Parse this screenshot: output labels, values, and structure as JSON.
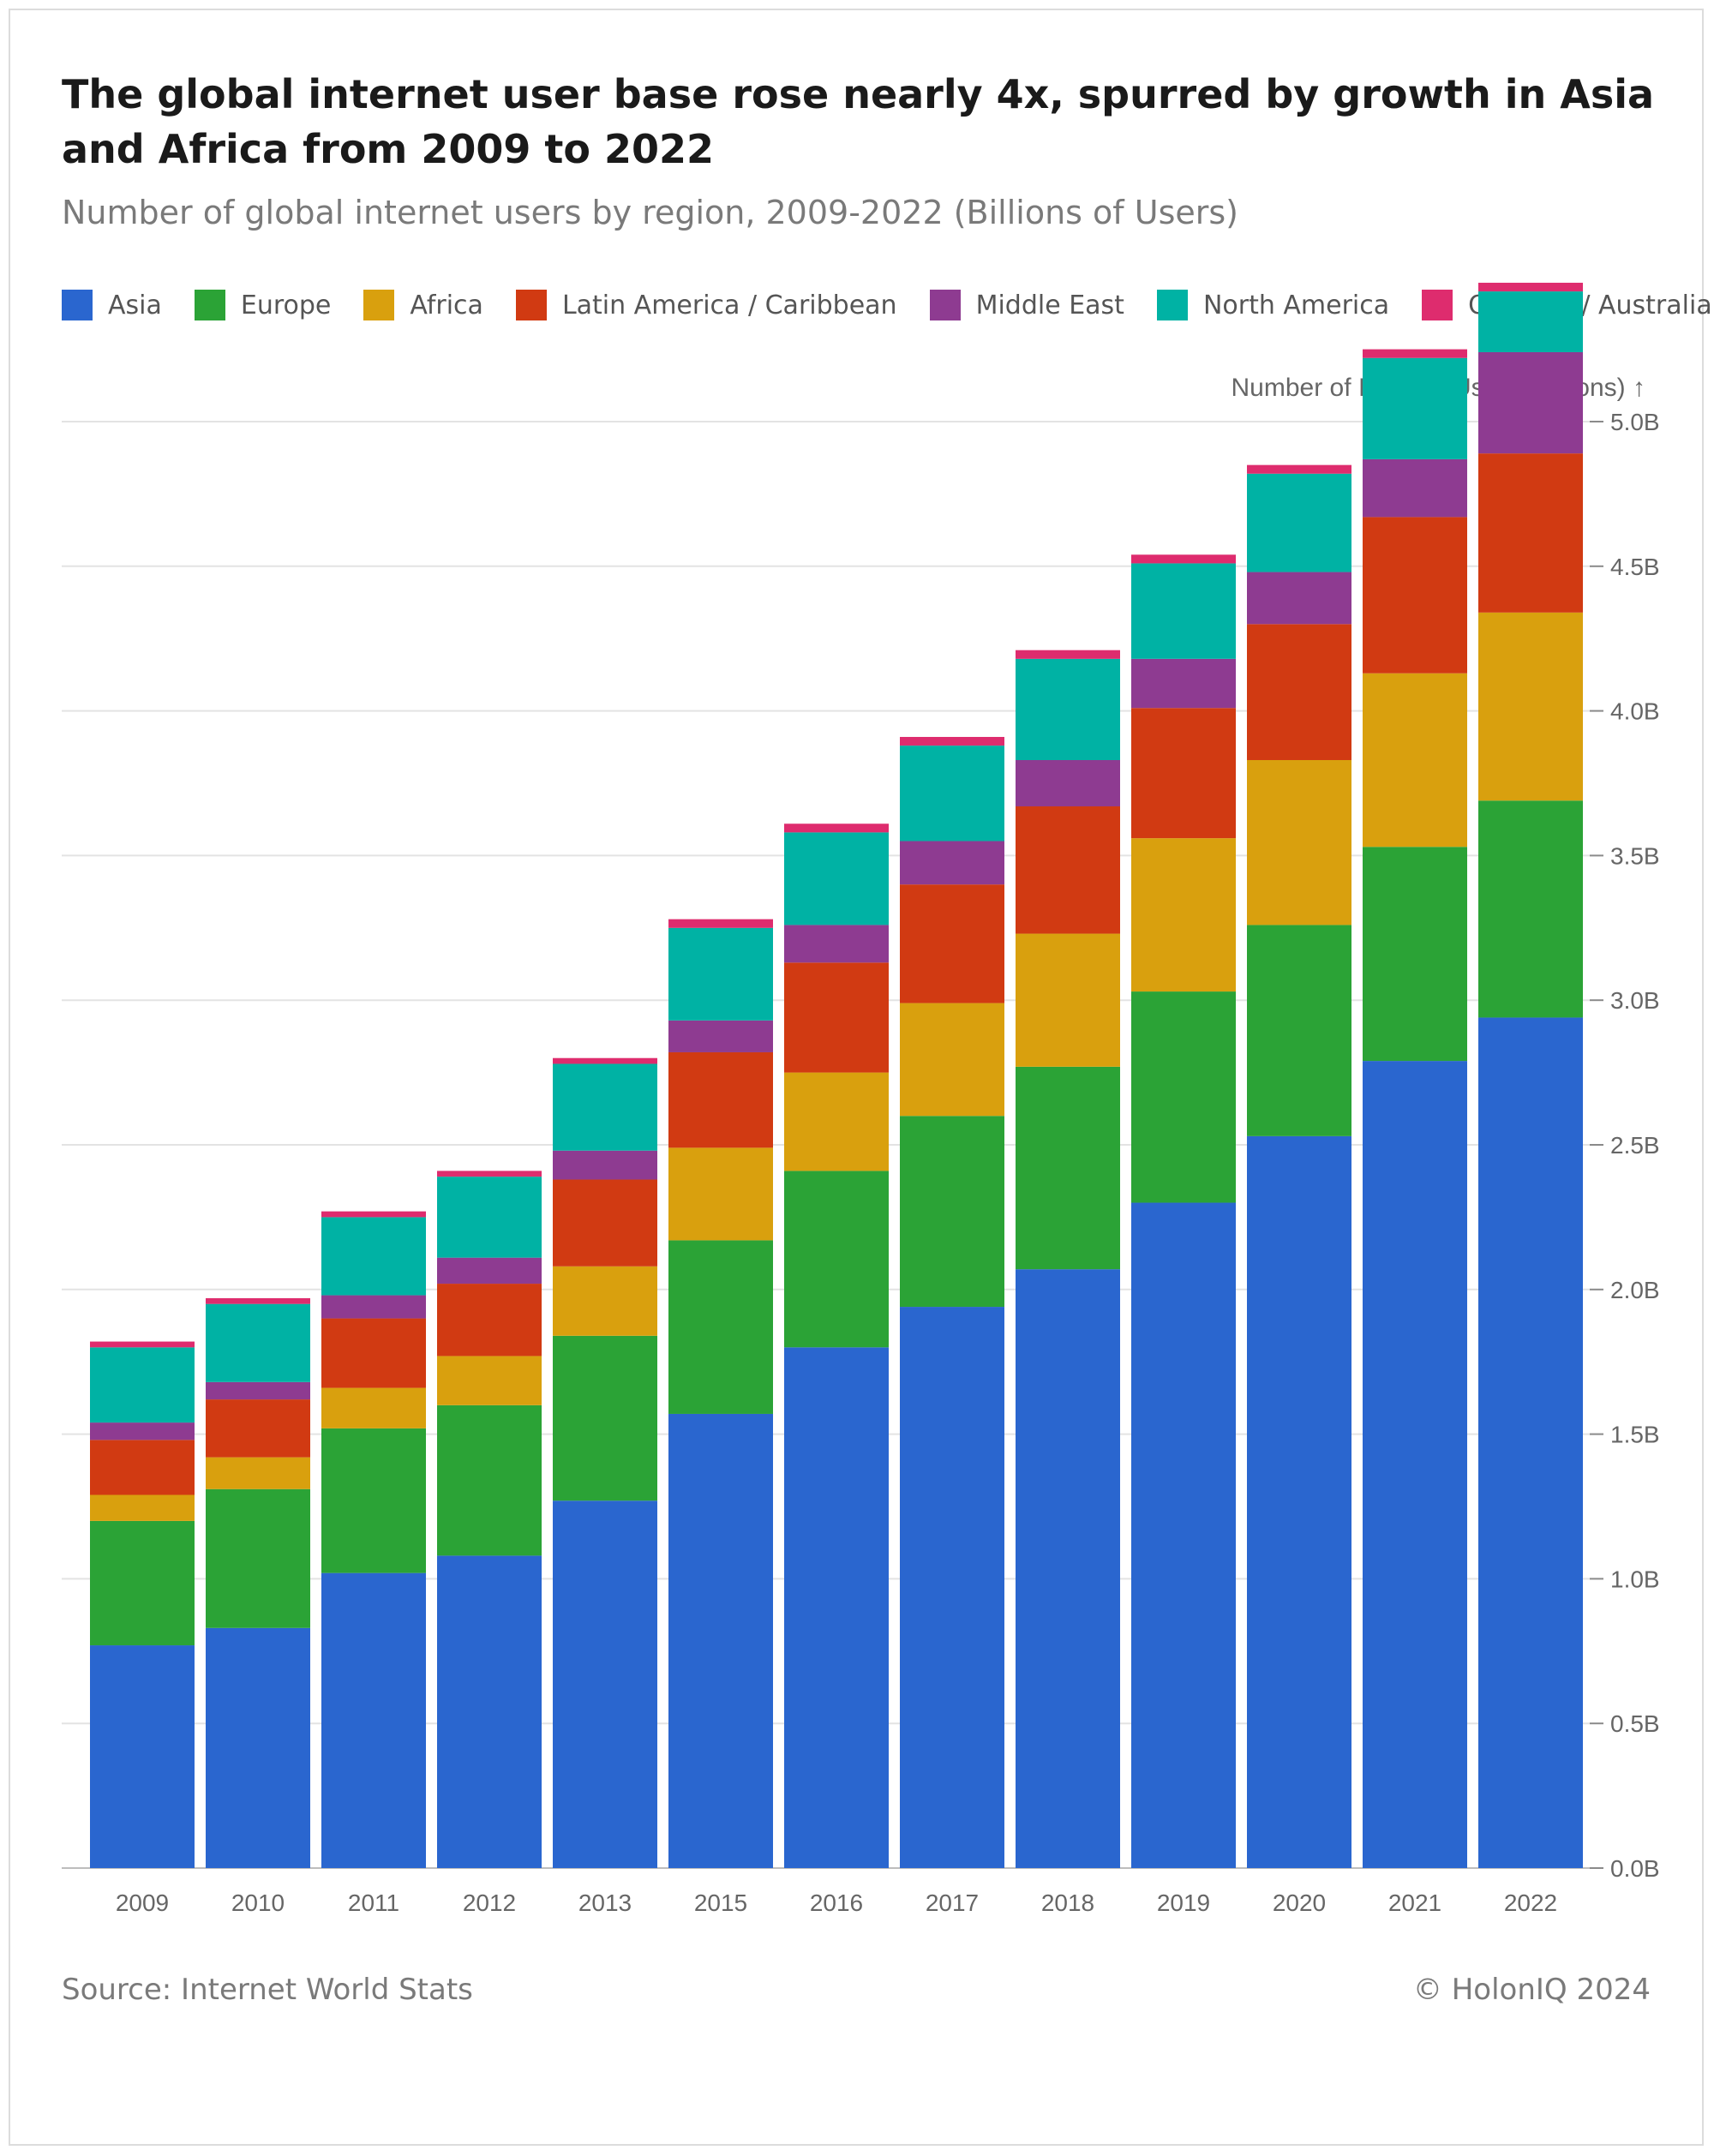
{
  "header": {
    "title": "The global internet user base rose nearly 4x, spurred by growth in Asia and Africa from 2009 to 2022",
    "subtitle": "Number of global internet users by region, 2009-2022 (Billions of Users)"
  },
  "footer": {
    "source": "Source: Internet World Stats",
    "credit": "© HolonIQ 2024"
  },
  "chart_data": {
    "type": "bar",
    "stacked": true,
    "ylabel": "Number of Internet Users (Billions) ↑",
    "ylim": [
      0,
      5.5
    ],
    "y_ticks": [
      "0.0B",
      "0.5B",
      "1.0B",
      "1.5B",
      "2.0B",
      "2.5B",
      "3.0B",
      "3.5B",
      "4.0B",
      "4.5B",
      "5.0B"
    ],
    "y_tick_values": [
      0,
      0.5,
      1.0,
      1.5,
      2.0,
      2.5,
      3.0,
      3.5,
      4.0,
      4.5,
      5.0
    ],
    "y_axis_position": "right",
    "grid": true,
    "legend_position": "top-left",
    "categories": [
      "2009",
      "2010",
      "2011",
      "2012",
      "2013",
      "2015",
      "2016",
      "2017",
      "2018",
      "2019",
      "2020",
      "2021",
      "2022"
    ],
    "series": [
      {
        "name": "Asia",
        "color": "#2a66cf",
        "values": [
          0.77,
          0.83,
          1.02,
          1.08,
          1.27,
          1.57,
          1.8,
          1.94,
          2.07,
          2.3,
          2.53,
          2.79,
          2.94
        ]
      },
      {
        "name": "Europe",
        "color": "#2ba336",
        "values": [
          0.43,
          0.48,
          0.5,
          0.52,
          0.57,
          0.6,
          0.61,
          0.66,
          0.7,
          0.73,
          0.73,
          0.74,
          0.75
        ]
      },
      {
        "name": "Africa",
        "color": "#d9a00e",
        "values": [
          0.09,
          0.11,
          0.14,
          0.17,
          0.24,
          0.32,
          0.34,
          0.39,
          0.46,
          0.53,
          0.57,
          0.6,
          0.65
        ]
      },
      {
        "name": "Latin America / Caribbean",
        "color": "#d13a12",
        "values": [
          0.19,
          0.2,
          0.24,
          0.25,
          0.3,
          0.33,
          0.38,
          0.41,
          0.44,
          0.45,
          0.47,
          0.54,
          0.55
        ]
      },
      {
        "name": "Middle East",
        "color": "#8e3b91",
        "values": [
          0.06,
          0.06,
          0.08,
          0.09,
          0.1,
          0.11,
          0.13,
          0.15,
          0.16,
          0.17,
          0.18,
          0.2,
          0.35
        ]
      },
      {
        "name": "North America",
        "color": "#00b2a4",
        "values": [
          0.26,
          0.27,
          0.27,
          0.28,
          0.3,
          0.32,
          0.32,
          0.33,
          0.35,
          0.33,
          0.34,
          0.35,
          0.21
        ]
      },
      {
        "name": "Oceania / Australia",
        "color": "#de2c6e",
        "values": [
          0.02,
          0.02,
          0.02,
          0.02,
          0.02,
          0.03,
          0.03,
          0.03,
          0.03,
          0.03,
          0.03,
          0.03,
          0.03
        ]
      }
    ]
  }
}
